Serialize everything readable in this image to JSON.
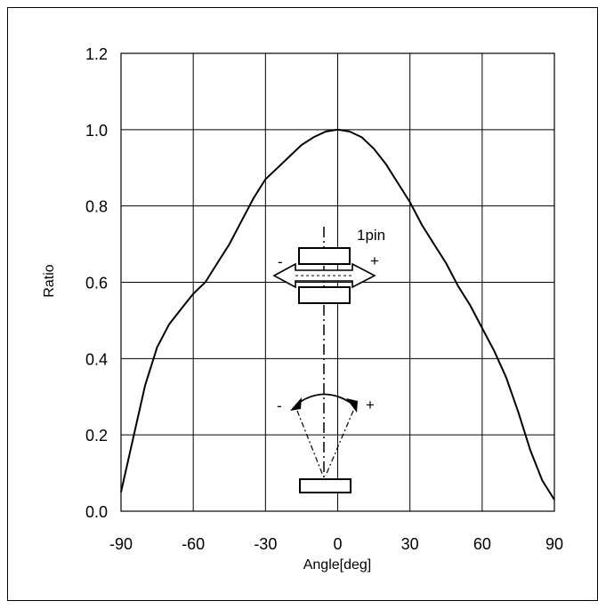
{
  "chart_data": {
    "type": "line",
    "title": "",
    "xlabel": "Angle[deg]",
    "ylabel": "Ratio",
    "xlim": [
      -90,
      90
    ],
    "ylim": [
      0,
      1.2
    ],
    "xticks": [
      -90,
      -60,
      -30,
      0,
      30,
      60,
      90
    ],
    "yticks": [
      "0.0",
      "0.2",
      "0.4",
      "0.6",
      "0.8",
      "1.0",
      "1.2"
    ],
    "grid": true,
    "legend": "none",
    "series": [
      {
        "x": [
          -90,
          -85,
          -80,
          -75,
          -70,
          -65,
          -60,
          -55,
          -50,
          -45,
          -40,
          -35,
          -30,
          -25,
          -20,
          -15,
          -10,
          -5,
          0,
          5,
          10,
          15,
          20,
          25,
          30,
          35,
          40,
          45,
          50,
          55,
          60,
          65,
          70,
          75,
          80,
          85,
          90
        ],
        "values": [
          0.05,
          0.19,
          0.33,
          0.43,
          0.49,
          0.53,
          0.57,
          0.6,
          0.65,
          0.7,
          0.76,
          0.82,
          0.87,
          0.9,
          0.93,
          0.96,
          0.98,
          0.995,
          1.0,
          0.995,
          0.98,
          0.95,
          0.91,
          0.86,
          0.81,
          0.75,
          0.7,
          0.65,
          0.59,
          0.54,
          0.48,
          0.42,
          0.35,
          0.26,
          0.16,
          0.08,
          0.03
        ]
      }
    ],
    "annotations": {
      "pin_label": "1pin",
      "rot_minus": "-",
      "rot_plus": "+",
      "tilt_minus": "-",
      "tilt_plus": "+"
    }
  }
}
